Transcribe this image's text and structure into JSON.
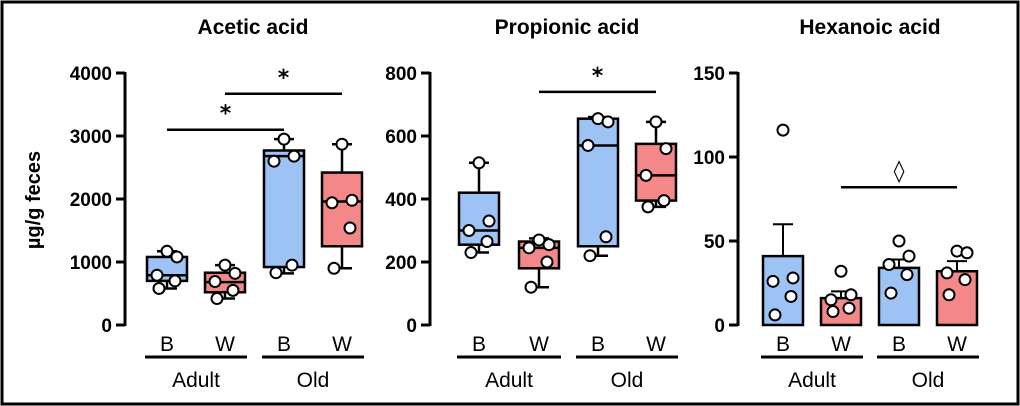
{
  "colors": {
    "B": "#9dc3f5",
    "W": "#f48787",
    "stroke": "#000000"
  },
  "ylabel": "µg/g feces",
  "chart_data": [
    {
      "type": "box",
      "title": "Acetic acid",
      "ylim": [
        0,
        4000
      ],
      "yticks": [
        0,
        1000,
        2000,
        3000,
        4000
      ],
      "ytick_labels": [
        "0",
        "1000",
        "2000",
        "3000",
        "4000"
      ],
      "categories": [
        "B",
        "W",
        "B",
        "W"
      ],
      "groups": [
        {
          "label": "Adult",
          "span": [
            0,
            1
          ]
        },
        {
          "label": "Old",
          "span": [
            2,
            3
          ]
        }
      ],
      "boxes": [
        {
          "category": "B",
          "group": "Adult",
          "min": 580,
          "q1": 700,
          "median": 790,
          "q3": 1080,
          "max": 1170,
          "points": [
            1170,
            1080,
            790,
            700,
            580
          ]
        },
        {
          "category": "W",
          "group": "Adult",
          "min": 420,
          "q1": 520,
          "median": 680,
          "q3": 830,
          "max": 950,
          "points": [
            950,
            820,
            690,
            550,
            420
          ]
        },
        {
          "category": "B",
          "group": "Old",
          "min": 820,
          "q1": 920,
          "median": 2680,
          "q3": 2770,
          "max": 2950,
          "points": [
            2950,
            2680,
            2600,
            950,
            830
          ]
        },
        {
          "category": "W",
          "group": "Old",
          "min": 900,
          "q1": 1250,
          "median": 1960,
          "q3": 2420,
          "max": 2870,
          "points": [
            2870,
            1980,
            1940,
            1540,
            900
          ]
        }
      ],
      "significance": [
        {
          "from": 0,
          "to": 2,
          "y": 3100,
          "label": "*"
        },
        {
          "from": 1,
          "to": 3,
          "y": 3670,
          "label": "*"
        }
      ]
    },
    {
      "type": "box",
      "title": "Propionic acid",
      "ylim": [
        0,
        800
      ],
      "yticks": [
        0,
        200,
        400,
        600,
        800
      ],
      "ytick_labels": [
        "0",
        "200",
        "400",
        "600",
        "800"
      ],
      "categories": [
        "B",
        "W",
        "B",
        "W"
      ],
      "groups": [
        {
          "label": "Adult",
          "span": [
            0,
            1
          ]
        },
        {
          "label": "Old",
          "span": [
            2,
            3
          ]
        }
      ],
      "boxes": [
        {
          "category": "B",
          "group": "Adult",
          "min": 230,
          "q1": 255,
          "median": 300,
          "q3": 420,
          "max": 515,
          "points": [
            515,
            330,
            300,
            265,
            230
          ]
        },
        {
          "category": "W",
          "group": "Adult",
          "min": 120,
          "q1": 180,
          "median": 245,
          "q3": 265,
          "max": 275,
          "points": [
            270,
            255,
            245,
            200,
            120
          ]
        },
        {
          "category": "B",
          "group": "Old",
          "min": 220,
          "q1": 250,
          "median": 570,
          "q3": 655,
          "max": 660,
          "points": [
            655,
            645,
            570,
            280,
            220
          ]
        },
        {
          "category": "W",
          "group": "Old",
          "min": 375,
          "q1": 395,
          "median": 475,
          "q3": 575,
          "max": 645,
          "points": [
            645,
            560,
            475,
            395,
            375
          ]
        }
      ],
      "significance": [
        {
          "from": 1,
          "to": 3,
          "y": 740,
          "label": "*"
        }
      ]
    },
    {
      "type": "bar",
      "title": "Hexanoic acid",
      "ylim": [
        0,
        150
      ],
      "yticks": [
        0,
        50,
        100,
        150
      ],
      "ytick_labels": [
        "0",
        "50",
        "100",
        "150"
      ],
      "categories": [
        "B",
        "W",
        "B",
        "W"
      ],
      "groups": [
        {
          "label": "Adult",
          "span": [
            0,
            1
          ]
        },
        {
          "label": "Old",
          "span": [
            2,
            3
          ]
        }
      ],
      "bars": [
        {
          "category": "B",
          "group": "Adult",
          "mean": 41,
          "sem": 19,
          "points": [
            116,
            28,
            26,
            17,
            6
          ]
        },
        {
          "category": "W",
          "group": "Adult",
          "mean": 16,
          "sem": 4,
          "points": [
            32,
            18,
            15,
            10,
            8
          ]
        },
        {
          "category": "B",
          "group": "Old",
          "mean": 34,
          "sem": 5,
          "points": [
            50,
            41,
            36,
            30,
            19
          ]
        },
        {
          "category": "W",
          "group": "Old",
          "mean": 32,
          "sem": 6,
          "points": [
            44,
            43,
            31,
            27,
            18
          ]
        }
      ],
      "significance": [
        {
          "from": 1,
          "to": 3,
          "y": 82,
          "label": "◊"
        }
      ]
    }
  ]
}
